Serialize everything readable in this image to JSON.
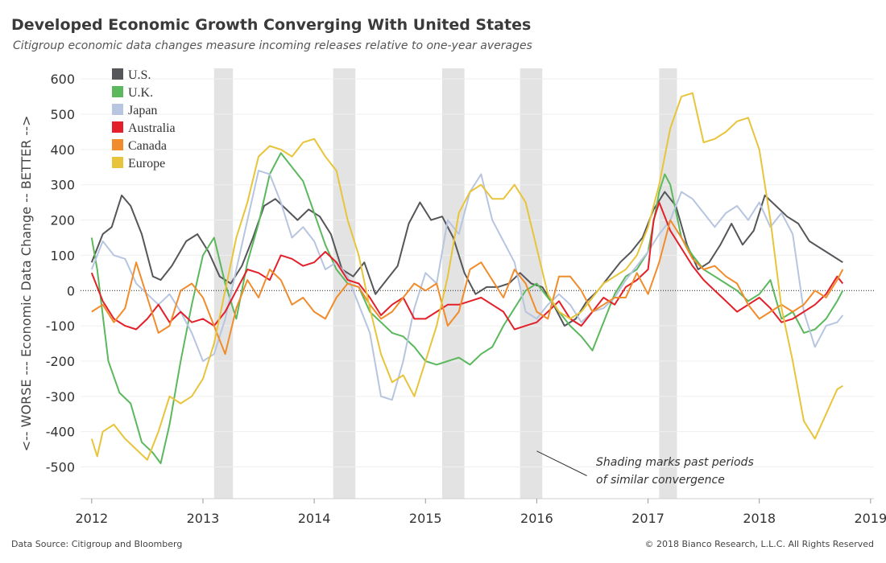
{
  "header": {
    "title": "Developed Economic Growth Converging With United States",
    "subtitle": "Citigroup economic data changes measure incoming releases relative to one-year averages"
  },
  "footer": {
    "source": "Data Source: Citigroup and Bloomberg",
    "copyright": "© 2018 Bianco Research, L.L.C. All Rights Reserved"
  },
  "chart_data": {
    "type": "line",
    "title": "Developed Economic Growth Converging With United States",
    "subtitle": "Citigroup economic data changes measure incoming releases relative to one-year averages",
    "xlabel": "",
    "ylabel": "<-- WORSE --- Economic Data Change -- BETTER -->",
    "xlim": [
      2011.9,
      2019.03
    ],
    "ylim": [
      -590,
      630
    ],
    "x_ticks": [
      2012,
      2013,
      2014,
      2015,
      2016,
      2017,
      2018,
      2019
    ],
    "y_ticks": [
      600,
      500,
      400,
      300,
      200,
      100,
      0,
      -100,
      -200,
      -300,
      -400,
      -500
    ],
    "grid": "horizontal",
    "zero_line": "dotted",
    "legend_position": "top-left",
    "shaded_periods": [
      [
        2013.1,
        2013.27
      ],
      [
        2014.17,
        2014.37
      ],
      [
        2015.15,
        2015.35
      ],
      [
        2015.85,
        2016.05
      ],
      [
        2017.1,
        2017.26
      ]
    ],
    "annotation": {
      "text_lines": [
        "Shading marks past periods",
        "of similar convergence"
      ],
      "arrow_from": [
        2016.45,
        -525
      ],
      "arrow_to": [
        2016.0,
        -455
      ]
    },
    "series": [
      {
        "name": "U.S.",
        "color": "#55565a",
        "x": [
          2012.0,
          2012.1,
          2012.18,
          2012.27,
          2012.35,
          2012.45,
          2012.55,
          2012.62,
          2012.72,
          2012.85,
          2012.95,
          2013.05,
          2013.15,
          2013.25,
          2013.35,
          2013.45,
          2013.55,
          2013.65,
          2013.75,
          2013.85,
          2013.95,
          2014.05,
          2014.15,
          2014.25,
          2014.35,
          2014.45,
          2014.55,
          2014.65,
          2014.75,
          2014.85,
          2014.95,
          2015.05,
          2015.15,
          2015.25,
          2015.35,
          2015.45,
          2015.55,
          2015.65,
          2015.75,
          2015.85,
          2015.95,
          2016.05,
          2016.15,
          2016.25,
          2016.35,
          2016.45,
          2016.55,
          2016.65,
          2016.75,
          2016.85,
          2016.95,
          2017.05,
          2017.15,
          2017.25,
          2017.35,
          2017.45,
          2017.55,
          2017.65,
          2017.75,
          2017.85,
          2017.95,
          2018.05,
          2018.15,
          2018.25,
          2018.35,
          2018.45,
          2018.55,
          2018.65,
          2018.75
        ],
        "y": [
          80,
          160,
          180,
          270,
          240,
          160,
          40,
          30,
          70,
          140,
          160,
          110,
          40,
          20,
          70,
          150,
          240,
          260,
          230,
          200,
          230,
          210,
          160,
          60,
          40,
          80,
          -10,
          30,
          70,
          190,
          250,
          200,
          210,
          150,
          50,
          -10,
          10,
          10,
          20,
          50,
          20,
          10,
          -40,
          -100,
          -80,
          -30,
          0,
          40,
          80,
          110,
          150,
          230,
          280,
          240,
          130,
          60,
          80,
          130,
          190,
          130,
          170,
          270,
          240,
          210,
          190,
          140,
          120,
          100,
          80
        ]
      },
      {
        "name": "U.K.",
        "color": "#5bb85d",
        "x": [
          2012.0,
          2012.05,
          2012.1,
          2012.15,
          2012.25,
          2012.35,
          2012.45,
          2012.55,
          2012.62,
          2012.7,
          2012.8,
          2012.9,
          2013.0,
          2013.1,
          2013.2,
          2013.3,
          2013.4,
          2013.5,
          2013.6,
          2013.7,
          2013.8,
          2013.9,
          2014.0,
          2014.1,
          2014.2,
          2014.3,
          2014.4,
          2014.5,
          2014.6,
          2014.7,
          2014.8,
          2014.9,
          2015.0,
          2015.1,
          2015.2,
          2015.3,
          2015.4,
          2015.5,
          2015.6,
          2015.7,
          2015.8,
          2015.9,
          2016.0,
          2016.1,
          2016.2,
          2016.3,
          2016.4,
          2016.5,
          2016.6,
          2016.7,
          2016.8,
          2016.9,
          2017.0,
          2017.1,
          2017.15,
          2017.2,
          2017.3,
          2017.4,
          2017.5,
          2017.6,
          2017.7,
          2017.8,
          2017.9,
          2018.0,
          2018.1,
          2018.2,
          2018.3,
          2018.4,
          2018.5,
          2018.6,
          2018.7,
          2018.75
        ],
        "y": [
          150,
          60,
          -70,
          -200,
          -290,
          -320,
          -430,
          -460,
          -490,
          -380,
          -200,
          -40,
          100,
          150,
          20,
          -80,
          80,
          190,
          330,
          390,
          350,
          310,
          220,
          130,
          60,
          20,
          10,
          -60,
          -90,
          -120,
          -130,
          -160,
          -200,
          -210,
          -200,
          -190,
          -210,
          -180,
          -160,
          -100,
          -50,
          0,
          20,
          -20,
          -60,
          -100,
          -130,
          -170,
          -90,
          -10,
          40,
          60,
          110,
          280,
          330,
          300,
          150,
          100,
          60,
          40,
          20,
          0,
          -30,
          -10,
          30,
          -80,
          -60,
          -120,
          -110,
          -80,
          -30,
          0
        ]
      },
      {
        "name": "Japan",
        "color": "#b7c5e0",
        "x": [
          2012.0,
          2012.1,
          2012.2,
          2012.3,
          2012.4,
          2012.5,
          2012.6,
          2012.7,
          2012.8,
          2012.9,
          2013.0,
          2013.1,
          2013.2,
          2013.3,
          2013.4,
          2013.5,
          2013.6,
          2013.7,
          2013.8,
          2013.9,
          2014.0,
          2014.1,
          2014.2,
          2014.3,
          2014.4,
          2014.5,
          2014.6,
          2014.7,
          2014.8,
          2014.9,
          2015.0,
          2015.1,
          2015.2,
          2015.3,
          2015.4,
          2015.5,
          2015.6,
          2015.7,
          2015.8,
          2015.9,
          2016.0,
          2016.1,
          2016.2,
          2016.3,
          2016.4,
          2016.5,
          2016.6,
          2016.7,
          2016.8,
          2016.9,
          2017.0,
          2017.1,
          2017.2,
          2017.3,
          2017.4,
          2017.5,
          2017.6,
          2017.7,
          2017.8,
          2017.9,
          2018.0,
          2018.1,
          2018.2,
          2018.3,
          2018.4,
          2018.5,
          2018.6,
          2018.7,
          2018.75
        ],
        "y": [
          60,
          140,
          100,
          90,
          20,
          -10,
          -40,
          -10,
          -60,
          -120,
          -200,
          -180,
          -80,
          60,
          200,
          340,
          330,
          250,
          150,
          180,
          140,
          60,
          80,
          40,
          -40,
          -120,
          -300,
          -310,
          -200,
          -50,
          50,
          20,
          200,
          160,
          280,
          330,
          200,
          140,
          80,
          -60,
          -80,
          -40,
          -10,
          -40,
          -90,
          -60,
          -50,
          -20,
          30,
          70,
          110,
          160,
          200,
          280,
          260,
          220,
          180,
          220,
          240,
          200,
          250,
          180,
          220,
          160,
          -60,
          -160,
          -100,
          -90,
          -70
        ]
      },
      {
        "name": "Australia",
        "color": "#e3202a",
        "x": [
          2012.0,
          2012.1,
          2012.2,
          2012.3,
          2012.4,
          2012.5,
          2012.6,
          2012.7,
          2012.8,
          2012.9,
          2013.0,
          2013.1,
          2013.2,
          2013.3,
          2013.4,
          2013.5,
          2013.6,
          2013.7,
          2013.8,
          2013.9,
          2014.0,
          2014.1,
          2014.2,
          2014.3,
          2014.4,
          2014.5,
          2014.6,
          2014.7,
          2014.8,
          2014.9,
          2015.0,
          2015.1,
          2015.2,
          2015.3,
          2015.4,
          2015.5,
          2015.6,
          2015.7,
          2015.8,
          2015.9,
          2016.0,
          2016.1,
          2016.2,
          2016.3,
          2016.4,
          2016.5,
          2016.6,
          2016.7,
          2016.8,
          2016.9,
          2017.0,
          2017.05,
          2017.1,
          2017.2,
          2017.3,
          2017.4,
          2017.5,
          2017.6,
          2017.7,
          2017.8,
          2017.9,
          2018.0,
          2018.1,
          2018.2,
          2018.3,
          2018.4,
          2018.5,
          2018.6,
          2018.7,
          2018.75
        ],
        "y": [
          50,
          -30,
          -80,
          -100,
          -110,
          -80,
          -40,
          -90,
          -60,
          -90,
          -80,
          -100,
          -60,
          0,
          60,
          50,
          30,
          100,
          90,
          70,
          80,
          110,
          80,
          30,
          20,
          -20,
          -70,
          -40,
          -20,
          -80,
          -80,
          -60,
          -40,
          -40,
          -30,
          -20,
          -40,
          -60,
          -110,
          -100,
          -90,
          -60,
          -30,
          -80,
          -100,
          -60,
          -20,
          -40,
          10,
          30,
          60,
          200,
          250,
          170,
          120,
          70,
          30,
          0,
          -30,
          -60,
          -40,
          -20,
          -50,
          -90,
          -80,
          -60,
          -40,
          -10,
          40,
          20
        ]
      },
      {
        "name": "Canada",
        "color": "#f08c2b",
        "x": [
          2012.0,
          2012.1,
          2012.2,
          2012.3,
          2012.4,
          2012.5,
          2012.6,
          2012.7,
          2012.8,
          2012.9,
          2013.0,
          2013.1,
          2013.2,
          2013.3,
          2013.4,
          2013.5,
          2013.6,
          2013.7,
          2013.8,
          2013.9,
          2014.0,
          2014.1,
          2014.2,
          2014.3,
          2014.4,
          2014.5,
          2014.6,
          2014.7,
          2014.8,
          2014.9,
          2015.0,
          2015.1,
          2015.2,
          2015.3,
          2015.4,
          2015.5,
          2015.6,
          2015.7,
          2015.8,
          2015.9,
          2016.0,
          2016.1,
          2016.2,
          2016.3,
          2016.4,
          2016.5,
          2016.6,
          2016.7,
          2016.8,
          2016.9,
          2017.0,
          2017.1,
          2017.2,
          2017.3,
          2017.4,
          2017.5,
          2017.6,
          2017.7,
          2017.8,
          2017.9,
          2018.0,
          2018.1,
          2018.2,
          2018.3,
          2018.4,
          2018.5,
          2018.6,
          2018.7,
          2018.75
        ],
        "y": [
          -60,
          -40,
          -90,
          -50,
          80,
          -20,
          -120,
          -100,
          0,
          20,
          -20,
          -100,
          -180,
          -50,
          30,
          -20,
          60,
          30,
          -40,
          -20,
          -60,
          -80,
          -20,
          20,
          10,
          -40,
          -80,
          -60,
          -20,
          20,
          0,
          20,
          -100,
          -60,
          60,
          80,
          30,
          -20,
          60,
          20,
          -60,
          -80,
          40,
          40,
          0,
          -60,
          -40,
          -20,
          -20,
          50,
          -10,
          80,
          200,
          150,
          90,
          60,
          70,
          40,
          20,
          -40,
          -80,
          -60,
          -40,
          -60,
          -40,
          0,
          -20,
          30,
          60
        ]
      },
      {
        "name": "Europe",
        "color": "#e8c43a",
        "x": [
          2012.0,
          2012.05,
          2012.1,
          2012.2,
          2012.3,
          2012.4,
          2012.5,
          2012.6,
          2012.7,
          2012.8,
          2012.9,
          2013.0,
          2013.1,
          2013.2,
          2013.3,
          2013.4,
          2013.5,
          2013.6,
          2013.7,
          2013.8,
          2013.9,
          2014.0,
          2014.1,
          2014.2,
          2014.3,
          2014.4,
          2014.5,
          2014.6,
          2014.7,
          2014.8,
          2014.9,
          2015.0,
          2015.1,
          2015.2,
          2015.3,
          2015.4,
          2015.5,
          2015.6,
          2015.7,
          2015.8,
          2015.9,
          2016.0,
          2016.1,
          2016.2,
          2016.3,
          2016.4,
          2016.5,
          2016.6,
          2016.7,
          2016.8,
          2016.9,
          2017.0,
          2017.1,
          2017.2,
          2017.3,
          2017.4,
          2017.5,
          2017.6,
          2017.7,
          2017.8,
          2017.9,
          2018.0,
          2018.1,
          2018.2,
          2018.3,
          2018.4,
          2018.5,
          2018.6,
          2018.7,
          2018.75
        ],
        "y": [
          -420,
          -470,
          -400,
          -380,
          -420,
          -450,
          -480,
          -400,
          -300,
          -320,
          -300,
          -250,
          -150,
          0,
          150,
          250,
          380,
          410,
          400,
          380,
          420,
          430,
          380,
          340,
          200,
          100,
          -50,
          -180,
          -260,
          -240,
          -300,
          -200,
          -100,
          40,
          220,
          280,
          300,
          260,
          260,
          300,
          250,
          120,
          -10,
          -60,
          -80,
          -60,
          -20,
          20,
          40,
          60,
          100,
          180,
          300,
          460,
          550,
          560,
          420,
          430,
          450,
          480,
          490,
          400,
          200,
          -50,
          -200,
          -370,
          -420,
          -350,
          -280,
          -270
        ]
      }
    ]
  }
}
